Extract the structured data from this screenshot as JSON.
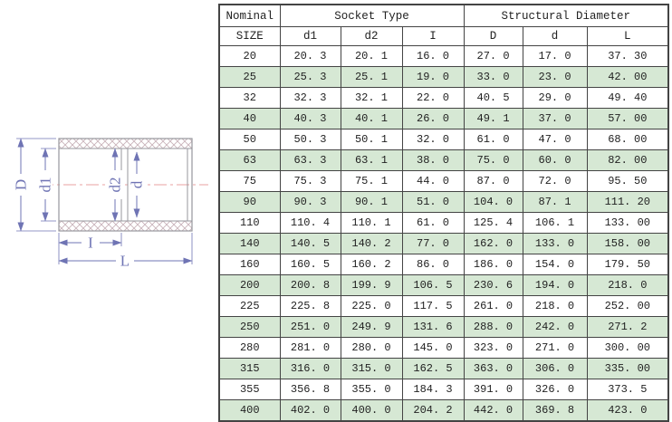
{
  "diagram": {
    "labels": {
      "outer_diameter": "D",
      "socket_mouth_diameter": "d1",
      "socket_root_diameter": "d2",
      "bore_diameter": "d",
      "socket_depth": "I",
      "overall_length": "L"
    },
    "colors": {
      "dimension_line": "#6f74b4",
      "body_outline": "#97979d",
      "hatch": "#c9b3ba",
      "centerline": "#e8a0a0"
    }
  },
  "table": {
    "header_row1": {
      "nominal": "Nominal",
      "socket_type": "Socket Type",
      "structural_diameter": "Structural Diameter"
    },
    "header_row2": {
      "size": "SIZE",
      "columns": [
        "d1",
        "d2",
        "I",
        "D",
        "d",
        "L"
      ]
    },
    "colors": {
      "alt_row_bg": "#d6e8d4",
      "border": "#444444"
    },
    "rows": [
      [
        "20",
        "20. 3",
        "20. 1",
        "16. 0",
        "27. 0",
        "17. 0",
        "37. 30"
      ],
      [
        "25",
        "25. 3",
        "25. 1",
        "19. 0",
        "33. 0",
        "23. 0",
        "42. 00"
      ],
      [
        "32",
        "32. 3",
        "32. 1",
        "22. 0",
        "40. 5",
        "29. 0",
        "49. 40"
      ],
      [
        "40",
        "40. 3",
        "40. 1",
        "26. 0",
        "49. 1",
        "37. 0",
        "57. 00"
      ],
      [
        "50",
        "50. 3",
        "50. 1",
        "32. 0",
        "61. 0",
        "47. 0",
        "68. 00"
      ],
      [
        "63",
        "63. 3",
        "63. 1",
        "38. 0",
        "75. 0",
        "60. 0",
        "82. 00"
      ],
      [
        "75",
        "75. 3",
        "75. 1",
        "44. 0",
        "87. 0",
        "72. 0",
        "95. 50"
      ],
      [
        "90",
        "90. 3",
        "90. 1",
        "51. 0",
        "104. 0",
        "87. 1",
        "111. 20"
      ],
      [
        "110",
        "110. 4",
        "110. 1",
        "61. 0",
        "125. 4",
        "106. 1",
        "133. 00"
      ],
      [
        "140",
        "140. 5",
        "140. 2",
        "77. 0",
        "162. 0",
        "133. 0",
        "158. 00"
      ],
      [
        "160",
        "160. 5",
        "160. 2",
        "86. 0",
        "186. 0",
        "154. 0",
        "179. 50"
      ],
      [
        "200",
        "200. 8",
        "199. 9",
        "106. 5",
        "230. 6",
        "194. 0",
        "218. 0"
      ],
      [
        "225",
        "225. 8",
        "225. 0",
        "117. 5",
        "261. 0",
        "218. 0",
        "252. 00"
      ],
      [
        "250",
        "251. 0",
        "249. 9",
        "131. 6",
        "288. 0",
        "242. 0",
        "271. 2"
      ],
      [
        "280",
        "281. 0",
        "280. 0",
        "145. 0",
        "323. 0",
        "271. 0",
        "300. 00"
      ],
      [
        "315",
        "316. 0",
        "315. 0",
        "162. 5",
        "363. 0",
        "306. 0",
        "335. 00"
      ],
      [
        "355",
        "356. 8",
        "355. 0",
        "184. 3",
        "391. 0",
        "326. 0",
        "373. 5"
      ],
      [
        "400",
        "402. 0",
        "400. 0",
        "204. 2",
        "442. 0",
        "369. 8",
        "423. 0"
      ]
    ]
  }
}
